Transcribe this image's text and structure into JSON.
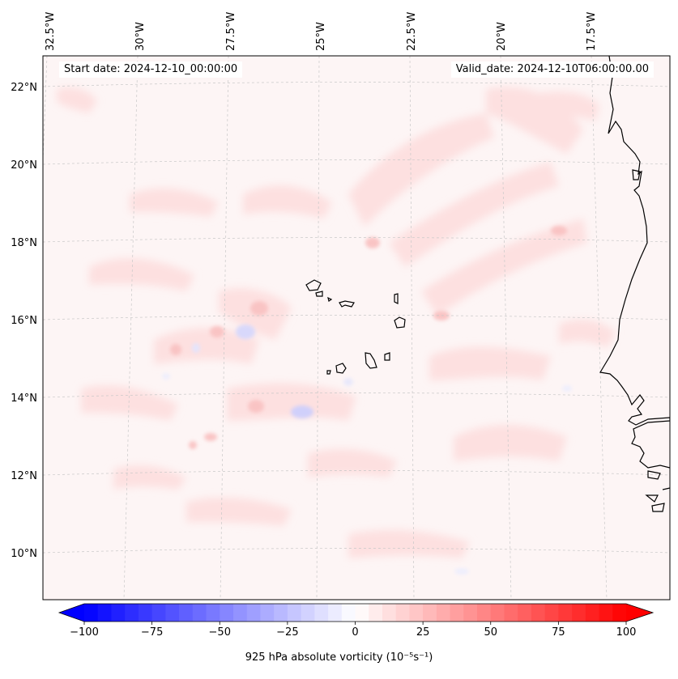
{
  "header": {
    "start_date": "Start date: 2024-12-10_00:00:00",
    "valid_date": "Valid_date: 2024-12-10T06:00:00.00"
  },
  "map": {
    "projection": "lambert-conformal",
    "gridlines": true,
    "coastlines": true,
    "lon_labels": [
      "32.5°W",
      "30°W",
      "27.5°W",
      "25°W",
      "22.5°W",
      "20°W",
      "17.5°W"
    ],
    "lat_labels": [
      "22°N",
      "20°N",
      "18°N",
      "16°N",
      "14°N",
      "12°N",
      "10°N"
    ],
    "field": "925 hPa absolute vorticity",
    "background_color": "#fdf5f5"
  },
  "colorbar": {
    "title": "925 hPa absolute vorticity (10⁻⁵s⁻¹)",
    "ticks": [
      "−100",
      "−75",
      "−50",
      "−25",
      "0",
      "25",
      "50",
      "75",
      "100"
    ],
    "range": [
      -100,
      100
    ],
    "colormap": "bwr",
    "low_color": "#0000ff",
    "mid_color": "#ffffff",
    "high_color": "#ff0000",
    "extend": "both"
  }
}
